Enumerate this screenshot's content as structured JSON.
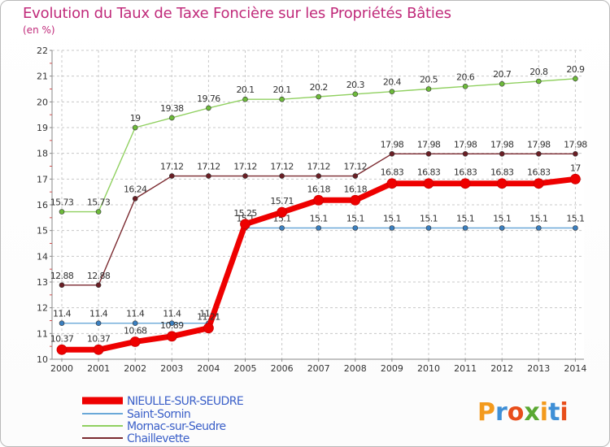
{
  "title": "Evolution du Taux de Taxe Foncière sur les Propriétés Bâties",
  "unit": "(en %)",
  "logo": {
    "text": "Proxiti",
    "colors": [
      "#f39a1d",
      "#3f8fd6",
      "#e84e1b",
      "#5aa832",
      "#f39a1d",
      "#3f8fd6",
      "#e84e1b"
    ]
  },
  "chart_data": {
    "type": "line",
    "title": "Evolution du Taux de Taxe Foncière sur les Propriétés Bâties",
    "ylabel": "(en %)",
    "xlabel": "",
    "ylim": [
      10,
      22
    ],
    "yticks": [
      10,
      11,
      12,
      13,
      14,
      15,
      16,
      17,
      18,
      19,
      20,
      21,
      22
    ],
    "categories": [
      "2000",
      "2001",
      "2002",
      "2003",
      "2004",
      "2005",
      "2006",
      "2007",
      "2008",
      "2009",
      "2010",
      "2011",
      "2012",
      "2013",
      "2014"
    ],
    "series": [
      {
        "name": "Mornac-sur-Seudre",
        "color": "#90d060",
        "marker": "#6dbb3a",
        "values": [
          15.73,
          15.73,
          19,
          19.38,
          19.76,
          20.1,
          20.1,
          20.2,
          20.3,
          20.4,
          20.5,
          20.6,
          20.7,
          20.8,
          20.9
        ],
        "labels": [
          "15.73",
          "15.73",
          "19",
          "19.38",
          "19.76",
          "20.1",
          "20.1",
          "20.2",
          "20.3",
          "20.4",
          "20.5",
          "20.6",
          "20.7",
          "20.8",
          "20.9"
        ]
      },
      {
        "name": "Chaillevette",
        "color": "#7b2a30",
        "marker": "#6a1e24",
        "values": [
          12.88,
          12.88,
          16.24,
          17.12,
          17.12,
          17.12,
          17.12,
          17.12,
          17.12,
          17.98,
          17.98,
          17.98,
          17.98,
          17.98,
          17.98
        ],
        "labels": [
          "12.88",
          "12.88",
          "16.24",
          "17.12",
          "17.12",
          "17.12",
          "17.12",
          "17.12",
          "17.12",
          "17.98",
          "17.98",
          "17.98",
          "17.98",
          "17.98",
          "17.98"
        ]
      },
      {
        "name": "Saint-Sornin",
        "color": "#6aa8d8",
        "marker": "#3a7fc0",
        "values": [
          11.4,
          11.4,
          11.4,
          11.4,
          11.4,
          15.1,
          15.1,
          15.1,
          15.1,
          15.1,
          15.1,
          15.1,
          15.1,
          15.1,
          15.1
        ],
        "labels": [
          "11.4",
          "11.4",
          "11.4",
          "11.4",
          "11.4",
          "15.1",
          "15.1",
          "15.1",
          "15.1",
          "15.1",
          "15.1",
          "15.1",
          "15.1",
          "15.1",
          "15.1"
        ]
      },
      {
        "name": "NIEULLE-SUR-SEUDRE",
        "color": "#ee0000",
        "marker": "#ee0000",
        "values": [
          10.37,
          10.37,
          10.68,
          10.89,
          11.21,
          15.25,
          15.71,
          16.18,
          16.18,
          16.83,
          16.83,
          16.83,
          16.83,
          16.83,
          17
        ],
        "labels": [
          "10.37",
          "10.37",
          "10.68",
          "10.89",
          "11.21",
          "15.25",
          "15.71",
          "16.18",
          "16.18",
          "16.83",
          "16.83",
          "16.83",
          "16.83",
          "16.83",
          "17"
        ]
      }
    ],
    "legend": [
      "NIEULLE-SUR-SEUDRE",
      "Saint-Sornin",
      "Mornac-sur-Seudre",
      "Chaillevette"
    ]
  }
}
